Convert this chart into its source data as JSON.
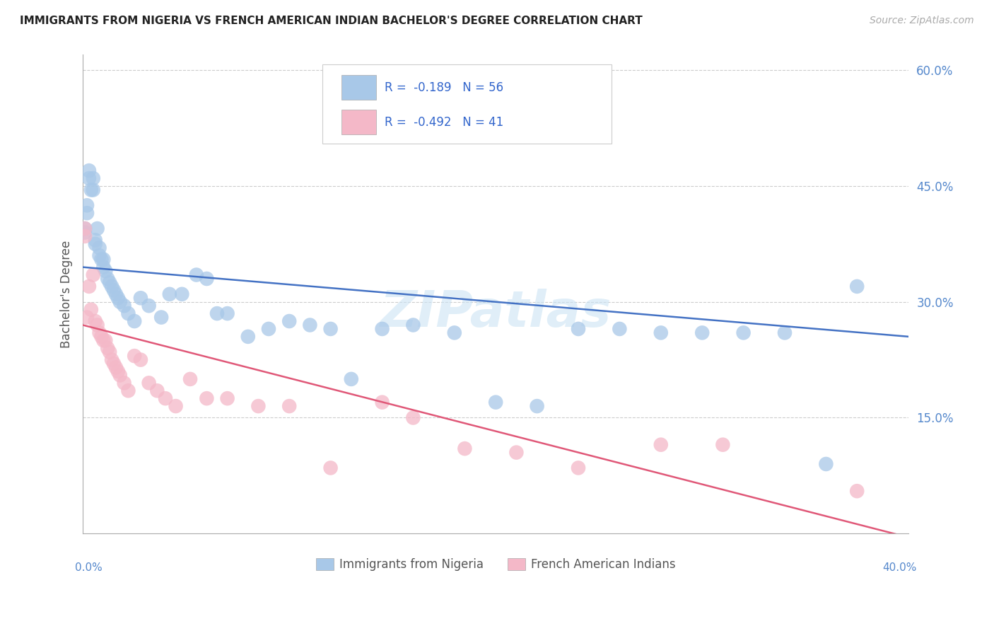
{
  "title": "IMMIGRANTS FROM NIGERIA VS FRENCH AMERICAN INDIAN BACHELOR'S DEGREE CORRELATION CHART",
  "source": "Source: ZipAtlas.com",
  "ylabel": "Bachelor's Degree",
  "watermark": "ZIPatlas",
  "blue_R": "-0.189",
  "blue_N": "56",
  "pink_R": "-0.492",
  "pink_N": "41",
  "legend_label_blue": "Immigrants from Nigeria",
  "legend_label_pink": "French American Indians",
  "title_color": "#222222",
  "source_color": "#aaaaaa",
  "blue_color": "#a8c8e8",
  "pink_color": "#f4b8c8",
  "blue_line_color": "#4472c4",
  "pink_line_color": "#e05878",
  "axis_label_color": "#5588cc",
  "grid_color": "#cccccc",
  "background_color": "#ffffff",
  "xmin": 0.0,
  "xmax": 0.4,
  "ymin": 0.0,
  "ymax": 0.62,
  "yticks": [
    0.15,
    0.3,
    0.45,
    0.6
  ],
  "ytick_labels": [
    "15.0%",
    "30.0%",
    "45.0%",
    "60.0%"
  ],
  "blue_line_x0": 0.0,
  "blue_line_x1": 0.4,
  "blue_line_y0": 0.345,
  "blue_line_y1": 0.255,
  "pink_line_x0": 0.0,
  "pink_line_x1": 0.4,
  "pink_line_y0": 0.27,
  "pink_line_y1": -0.005,
  "blue_x": [
    0.001,
    0.001,
    0.002,
    0.002,
    0.003,
    0.003,
    0.004,
    0.005,
    0.005,
    0.006,
    0.006,
    0.007,
    0.008,
    0.008,
    0.009,
    0.01,
    0.01,
    0.011,
    0.012,
    0.013,
    0.014,
    0.015,
    0.016,
    0.017,
    0.018,
    0.02,
    0.022,
    0.025,
    0.028,
    0.032,
    0.038,
    0.042,
    0.048,
    0.055,
    0.06,
    0.065,
    0.07,
    0.08,
    0.09,
    0.1,
    0.11,
    0.12,
    0.13,
    0.145,
    0.16,
    0.18,
    0.2,
    0.22,
    0.24,
    0.26,
    0.28,
    0.3,
    0.32,
    0.34,
    0.36,
    0.375
  ],
  "blue_y": [
    0.395,
    0.39,
    0.415,
    0.425,
    0.47,
    0.46,
    0.445,
    0.46,
    0.445,
    0.375,
    0.38,
    0.395,
    0.37,
    0.36,
    0.355,
    0.345,
    0.355,
    0.34,
    0.33,
    0.325,
    0.32,
    0.315,
    0.31,
    0.305,
    0.3,
    0.295,
    0.285,
    0.275,
    0.305,
    0.295,
    0.28,
    0.31,
    0.31,
    0.335,
    0.33,
    0.285,
    0.285,
    0.255,
    0.265,
    0.275,
    0.27,
    0.265,
    0.2,
    0.265,
    0.27,
    0.26,
    0.17,
    0.165,
    0.265,
    0.265,
    0.26,
    0.26,
    0.26,
    0.26,
    0.09,
    0.32
  ],
  "pink_x": [
    0.001,
    0.001,
    0.002,
    0.003,
    0.004,
    0.005,
    0.006,
    0.007,
    0.008,
    0.009,
    0.01,
    0.011,
    0.012,
    0.013,
    0.014,
    0.015,
    0.016,
    0.017,
    0.018,
    0.02,
    0.022,
    0.025,
    0.028,
    0.032,
    0.036,
    0.04,
    0.045,
    0.052,
    0.06,
    0.07,
    0.085,
    0.1,
    0.12,
    0.145,
    0.16,
    0.185,
    0.21,
    0.24,
    0.28,
    0.31,
    0.375
  ],
  "pink_y": [
    0.395,
    0.385,
    0.28,
    0.32,
    0.29,
    0.335,
    0.275,
    0.27,
    0.26,
    0.255,
    0.25,
    0.25,
    0.24,
    0.235,
    0.225,
    0.22,
    0.215,
    0.21,
    0.205,
    0.195,
    0.185,
    0.23,
    0.225,
    0.195,
    0.185,
    0.175,
    0.165,
    0.2,
    0.175,
    0.175,
    0.165,
    0.165,
    0.085,
    0.17,
    0.15,
    0.11,
    0.105,
    0.085,
    0.115,
    0.115,
    0.055
  ]
}
